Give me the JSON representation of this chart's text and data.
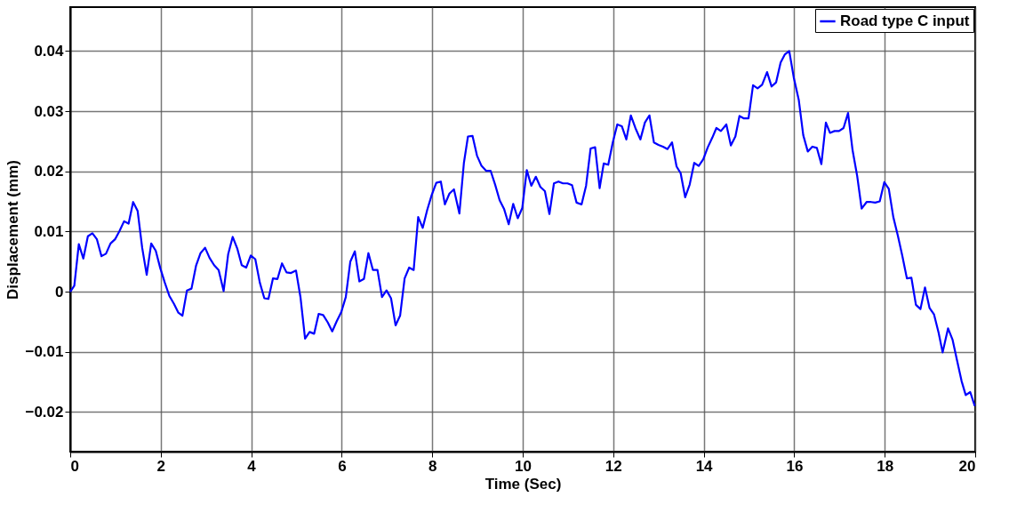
{
  "chart_data": {
    "type": "line",
    "xlabel": "Time (Sec)",
    "ylabel": "Displacement (mm)",
    "xlim": [
      0,
      20
    ],
    "xticks": [
      0,
      2,
      4,
      6,
      8,
      10,
      12,
      14,
      16,
      18,
      20
    ],
    "ylim": [
      -0.0266,
      0.0473
    ],
    "yticks": [
      -0.02,
      -0.01,
      0,
      0.01,
      0.02,
      0.03,
      0.04
    ],
    "grid": true,
    "legend": "top right",
    "line_style": "solid",
    "marker": "none",
    "series": [
      {
        "name": "Road type C input",
        "color": "#0000ff",
        "x": [
          0,
          0.09,
          0.19,
          0.29,
          0.39,
          0.49,
          0.59,
          0.69,
          0.79,
          0.89,
          0.99,
          1.09,
          1.19,
          1.29,
          1.39,
          1.49,
          1.59,
          1.69,
          1.79,
          1.89,
          1.99,
          2.09,
          2.19,
          2.29,
          2.39,
          2.48,
          2.58,
          2.68,
          2.78,
          2.88,
          2.98,
          3.08,
          3.18,
          3.28,
          3.39,
          3.49,
          3.59,
          3.69,
          3.79,
          3.89,
          3.99,
          4.09,
          4.19,
          4.29,
          4.38,
          4.48,
          4.58,
          4.68,
          4.78,
          4.88,
          4.99,
          5.09,
          5.19,
          5.29,
          5.39,
          5.49,
          5.59,
          5.69,
          5.79,
          5.89,
          5.99,
          6.09,
          6.19,
          6.29,
          6.39,
          6.49,
          6.59,
          6.69,
          6.79,
          6.89,
          6.99,
          7.09,
          7.19,
          7.29,
          7.39,
          7.49,
          7.59,
          7.69,
          7.79,
          7.89,
          7.99,
          8.09,
          8.19,
          8.28,
          8.38,
          8.48,
          8.6,
          8.7,
          8.79,
          8.89,
          8.99,
          9.09,
          9.19,
          9.29,
          9.39,
          9.49,
          9.59,
          9.69,
          9.79,
          9.89,
          9.99,
          10.09,
          10.19,
          10.29,
          10.39,
          10.49,
          10.59,
          10.69,
          10.79,
          10.89,
          10.99,
          11.09,
          11.19,
          11.3,
          11.4,
          11.5,
          11.6,
          11.7,
          11.79,
          11.89,
          11.99,
          12.09,
          12.19,
          12.29,
          12.39,
          12.49,
          12.6,
          12.7,
          12.8,
          12.9,
          13.0,
          13.1,
          13.2,
          13.3,
          13.4,
          13.49,
          13.59,
          13.69,
          13.79,
          13.89,
          13.99,
          14.09,
          14.19,
          14.28,
          14.38,
          14.5,
          14.6,
          14.7,
          14.79,
          14.89,
          14.99,
          15.09,
          15.19,
          15.29,
          15.4,
          15.5,
          15.6,
          15.7,
          15.79,
          15.89,
          15.99,
          16.1,
          16.2,
          16.3,
          16.4,
          16.5,
          16.6,
          16.7,
          16.79,
          16.89,
          16.99,
          17.09,
          17.19,
          17.29,
          17.39,
          17.49,
          17.6,
          17.7,
          17.79,
          17.89,
          17.99,
          18.09,
          18.19,
          18.29,
          18.39,
          18.49,
          18.59,
          18.69,
          18.79,
          18.89,
          18.99,
          19.09,
          19.19,
          19.28,
          19.4,
          19.5,
          19.6,
          19.7,
          19.79,
          19.89,
          19.99
        ],
        "values": [
          0,
          0.001,
          0.0079,
          0.0055,
          0.0092,
          0.0097,
          0.0087,
          0.0059,
          0.0063,
          0.008,
          0.0087,
          0.0101,
          0.0117,
          0.0113,
          0.0149,
          0.0134,
          0.0073,
          0.0028,
          0.008,
          0.0068,
          0.0039,
          0.0015,
          -0.0007,
          -0.002,
          -0.0035,
          -0.004,
          0.0002,
          0.0005,
          0.0043,
          0.0064,
          0.0073,
          0.0056,
          0.0044,
          0.0036,
          0.0001,
          0.0062,
          0.0091,
          0.0072,
          0.0044,
          0.004,
          0.006,
          0.0054,
          0.0015,
          -0.0011,
          -0.0012,
          0.0022,
          0.0021,
          0.0047,
          0.0032,
          0.0031,
          0.0035,
          -0.001,
          -0.0078,
          -0.0067,
          -0.007,
          -0.0037,
          -0.0039,
          -0.0051,
          -0.0066,
          -0.0049,
          -0.0034,
          -0.0009,
          0.005,
          0.0067,
          0.0017,
          0.0021,
          0.0064,
          0.0036,
          0.0036,
          -0.0009,
          0.0002,
          -0.0011,
          -0.0056,
          -0.004,
          0.0022,
          0.004,
          0.0036,
          0.0124,
          0.0106,
          0.0136,
          0.0161,
          0.0181,
          0.0183,
          0.0145,
          0.0163,
          0.017,
          0.013,
          0.0214,
          0.0258,
          0.0259,
          0.0226,
          0.0209,
          0.0201,
          0.0201,
          0.0178,
          0.0152,
          0.0137,
          0.0112,
          0.0146,
          0.0122,
          0.0139,
          0.0202,
          0.0176,
          0.0191,
          0.0174,
          0.0167,
          0.0129,
          0.018,
          0.0183,
          0.018,
          0.018,
          0.0177,
          0.0148,
          0.0145,
          0.0176,
          0.0238,
          0.024,
          0.0172,
          0.0213,
          0.0211,
          0.0248,
          0.0278,
          0.0275,
          0.0253,
          0.0293,
          0.0272,
          0.0253,
          0.0281,
          0.0293,
          0.0248,
          0.0244,
          0.0241,
          0.0237,
          0.0248,
          0.0208,
          0.0197,
          0.0157,
          0.0178,
          0.0214,
          0.0209,
          0.022,
          0.024,
          0.0256,
          0.0272,
          0.0267,
          0.0278,
          0.0243,
          0.0258,
          0.0292,
          0.0288,
          0.0288,
          0.0343,
          0.0338,
          0.0344,
          0.0365,
          0.0341,
          0.0348,
          0.0381,
          0.0394,
          0.04,
          0.0356,
          0.0319,
          0.026,
          0.0233,
          0.0241,
          0.0239,
          0.0212,
          0.0281,
          0.0264,
          0.0267,
          0.0267,
          0.0272,
          0.0297,
          0.0235,
          0.0193,
          0.0138,
          0.0149,
          0.0149,
          0.0148,
          0.015,
          0.0182,
          0.0171,
          0.0124,
          0.0093,
          0.0059,
          0.0022,
          0.0023,
          -0.0022,
          -0.0029,
          0.0007,
          -0.0027,
          -0.0038,
          -0.0068,
          -0.0101,
          -0.0061,
          -0.008,
          -0.0115,
          -0.0149,
          -0.0172,
          -0.0167,
          -0.019
        ]
      }
    ]
  }
}
